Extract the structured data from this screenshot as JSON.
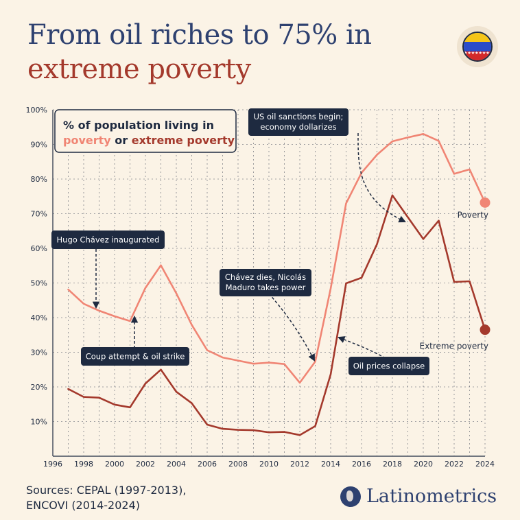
{
  "title": {
    "line1": "From oil riches to 75% in",
    "line2": "extreme poverty"
  },
  "flag": {
    "name": "venezuela-flag",
    "colors": [
      "#f5c518",
      "#2a4cc9",
      "#d42a2a"
    ]
  },
  "legend": {
    "line1": "% of population living in",
    "poverty": "poverty",
    "or": " or ",
    "extreme": "extreme poverty"
  },
  "sources": {
    "line1": "Sources: CEPAL (1997-2013),",
    "line2": "ENCOVI (2014-2024)"
  },
  "brand": {
    "name": "Latinometrics",
    "icon": "globe-icon"
  },
  "colors": {
    "poverty": "#f08574",
    "extreme": "#a4392c",
    "text": "#1e2a40",
    "grid": "#1e2a40"
  },
  "chart_data": {
    "type": "line",
    "xlim": [
      1996,
      2024
    ],
    "ylim": [
      0,
      100
    ],
    "x_ticks": [
      "1996",
      "1998",
      "2000",
      "2002",
      "2004",
      "2006",
      "2008",
      "2010",
      "2012",
      "2014",
      "2016",
      "2018",
      "2020",
      "2022",
      "2024"
    ],
    "y_ticks": [
      "10%",
      "20%",
      "30%",
      "40%",
      "50%",
      "60%",
      "70%",
      "80%",
      "90%",
      "100%"
    ],
    "grid": true,
    "series": [
      {
        "name": "Poverty",
        "color": "#f08574",
        "x": [
          1997,
          1998,
          1999,
          2000,
          2001,
          2002,
          2003,
          2004,
          2005,
          2006,
          2007,
          2008,
          2009,
          2010,
          2011,
          2012,
          2013,
          2014,
          2015,
          2016,
          2017,
          2018,
          2019,
          2020,
          2021,
          2022,
          2023,
          2024
        ],
        "y": [
          48.1,
          44.0,
          42.0,
          40.4,
          39.0,
          48.6,
          55.1,
          47.0,
          37.9,
          30.6,
          28.5,
          27.6,
          26.7,
          27.0,
          26.6,
          21.2,
          27.3,
          48.4,
          73.0,
          81.8,
          87.0,
          90.9,
          92.0,
          93.0,
          91.0,
          81.5,
          82.8,
          73.2
        ]
      },
      {
        "name": "Extreme poverty",
        "color": "#a4392c",
        "x": [
          1997,
          1998,
          1999,
          2000,
          2001,
          2002,
          2003,
          2004,
          2005,
          2006,
          2007,
          2008,
          2009,
          2010,
          2011,
          2012,
          2013,
          2014,
          2015,
          2016,
          2017,
          2018,
          2019,
          2020,
          2021,
          2022,
          2023,
          2024
        ],
        "y": [
          19.4,
          17.1,
          16.9,
          14.9,
          14.1,
          21.0,
          25.0,
          18.6,
          15.3,
          9.1,
          7.9,
          7.6,
          7.5,
          6.9,
          7.0,
          6.1,
          8.7,
          23.6,
          49.9,
          51.5,
          61.2,
          75.3,
          69.0,
          62.7,
          68.0,
          50.3,
          50.5,
          36.5
        ]
      }
    ],
    "end_labels": {
      "poverty": "Poverty",
      "extreme": "Extreme poverty"
    },
    "annotations": [
      {
        "lines": [
          "Hugo Chávez inaugurated"
        ],
        "target_year": 1999
      },
      {
        "lines": [
          "Coup attempt & oil strike"
        ],
        "target_year": 2001
      },
      {
        "lines": [
          "Chávez dies, Nicolás",
          "Maduro takes power"
        ],
        "target_year": 2013
      },
      {
        "lines": [
          "US oil sanctions begin;",
          "economy dollarizes"
        ],
        "target_year": 2019
      },
      {
        "lines": [
          "Oil prices collapse"
        ],
        "target_year": 2015
      }
    ]
  }
}
